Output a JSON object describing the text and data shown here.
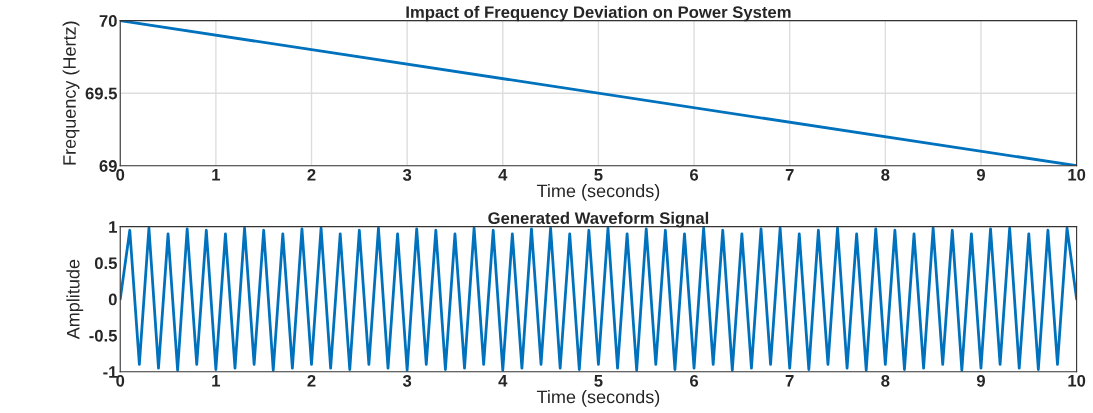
{
  "chart_data": [
    {
      "type": "line",
      "title": "Impact of Frequency Deviation on Power System",
      "xlabel": "Time (seconds)",
      "ylabel": "Frequency (Hertz)",
      "x": [
        0,
        10
      ],
      "values": [
        70,
        69
      ],
      "color": "#0072bd",
      "xlim": [
        0,
        10
      ],
      "xticks": [
        0,
        1,
        2,
        3,
        4,
        5,
        6,
        7,
        8,
        9,
        10
      ],
      "ylim": [
        69,
        70
      ],
      "yticks": [
        69,
        69.5,
        70
      ],
      "grid": true
    },
    {
      "type": "line",
      "title": "Generated Waveform Signal",
      "xlabel": "Time (seconds)",
      "ylabel": "Amplitude",
      "x": [
        0,
        0.1,
        0.2,
        0.3,
        0.4,
        0.5,
        0.6,
        0.7,
        0.8,
        0.9,
        1,
        1.1,
        1.2,
        1.3,
        1.4,
        1.5,
        1.6,
        1.7,
        1.8,
        1.9,
        2,
        2.1,
        2.2,
        2.3,
        2.4,
        2.5,
        2.6,
        2.7,
        2.8,
        2.9,
        3,
        3.1,
        3.2,
        3.3,
        3.4,
        3.5,
        3.6,
        3.7,
        3.8,
        3.9,
        4,
        4.1,
        4.2,
        4.3,
        4.4,
        4.5,
        4.6,
        4.7,
        4.8,
        4.9,
        5,
        5.1,
        5.2,
        5.3,
        5.4,
        5.5,
        5.6,
        5.7,
        5.8,
        5.9,
        6,
        6.1,
        6.2,
        6.3,
        6.4,
        6.5,
        6.6,
        6.7,
        6.8,
        6.9,
        7,
        7.1,
        7.2,
        7.3,
        7.4,
        7.5,
        7.6,
        7.7,
        7.8,
        7.9,
        8,
        8.1,
        8.2,
        8.3,
        8.4,
        8.5,
        8.6,
        8.7,
        8.8,
        8.9,
        9,
        9.1,
        9.2,
        9.3,
        9.4,
        9.5,
        9.6,
        9.7,
        9.8,
        9.9,
        10
      ],
      "values": [
        0,
        0.95,
        -0.9,
        0.98,
        -0.95,
        0.9,
        -0.98,
        0.97,
        -0.9,
        0.95,
        -0.97,
        0.9,
        -0.95,
        0.98,
        -0.9,
        0.95,
        -0.98,
        0.9,
        -0.95,
        0.97,
        -0.9,
        0.98,
        -0.95,
        0.9,
        -0.97,
        0.95,
        -0.9,
        0.98,
        -0.95,
        0.9,
        -0.98,
        0.97,
        -0.9,
        0.95,
        -0.97,
        0.9,
        -0.95,
        0.98,
        -0.9,
        0.95,
        -0.98,
        0.9,
        -0.95,
        0.97,
        -0.9,
        0.98,
        -0.95,
        0.9,
        -0.97,
        0.95,
        -0.9,
        0.98,
        -0.95,
        0.9,
        -0.98,
        0.97,
        -0.9,
        0.95,
        -0.97,
        0.9,
        -0.95,
        0.98,
        -0.9,
        0.95,
        -0.98,
        0.9,
        -0.95,
        0.97,
        -0.9,
        0.98,
        -0.95,
        0.9,
        -0.97,
        0.95,
        -0.9,
        0.98,
        -0.95,
        0.9,
        -0.98,
        0.97,
        -0.9,
        0.95,
        -0.97,
        0.9,
        -0.95,
        0.98,
        -0.9,
        0.95,
        -0.98,
        0.9,
        -0.95,
        0.97,
        -0.9,
        0.98,
        -0.95,
        0.9,
        -0.97,
        0.95,
        -0.9,
        0.98,
        0
      ],
      "color": "#0072bd",
      "xlim": [
        0,
        10
      ],
      "xticks": [
        0,
        1,
        2,
        3,
        4,
        5,
        6,
        7,
        8,
        9,
        10
      ],
      "ylim": [
        -1,
        1
      ],
      "yticks": [
        -1,
        -0.5,
        0,
        0.5,
        1
      ]
    }
  ]
}
